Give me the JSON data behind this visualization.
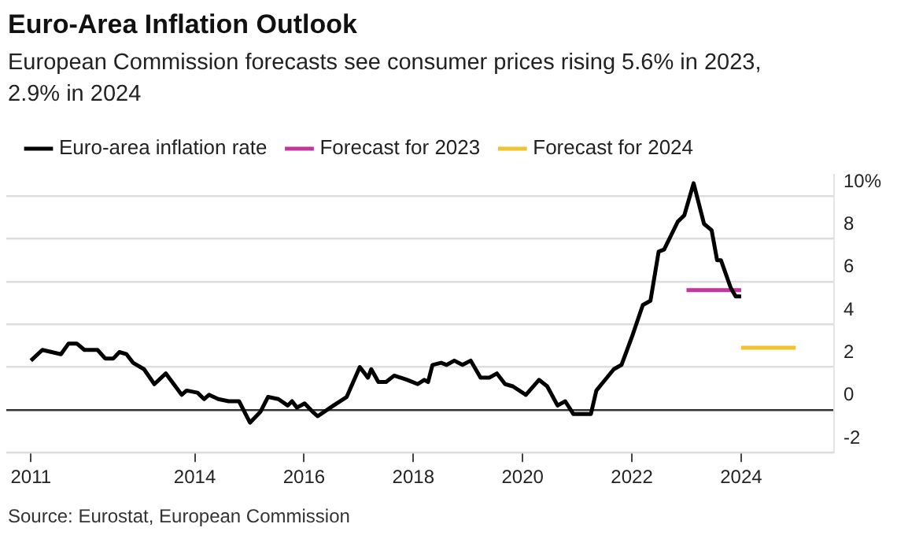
{
  "chart_data": {
    "type": "line",
    "title": "Euro-Area Inflation Outlook",
    "subtitle": "European Commission forecasts see consumer prices rising 5.6% in 2023, 2.9% in 2024",
    "series": [
      {
        "name": "Euro-area inflation rate",
        "color": "#000000",
        "x": [
          2011.0,
          2011.21,
          2011.55,
          2011.69,
          2011.84,
          2011.98,
          2012.22,
          2012.36,
          2012.51,
          2012.62,
          2012.75,
          2012.87,
          2013.07,
          2013.26,
          2013.47,
          2013.76,
          2013.85,
          2014.05,
          2014.17,
          2014.26,
          2014.43,
          2014.62,
          2014.81,
          2015.01,
          2015.2,
          2015.34,
          2015.53,
          2015.7,
          2015.78,
          2015.87,
          2016.01,
          2016.16,
          2016.25,
          2016.54,
          2016.78,
          2017.02,
          2017.17,
          2017.23,
          2017.36,
          2017.5,
          2017.65,
          2017.89,
          2018.08,
          2018.2,
          2018.27,
          2018.35,
          2018.51,
          2018.61,
          2018.75,
          2018.9,
          2019.05,
          2019.23,
          2019.39,
          2019.53,
          2019.68,
          2019.82,
          2020.06,
          2020.3,
          2020.45,
          2020.64,
          2020.78,
          2020.93,
          2021.25,
          2021.35,
          2021.67,
          2021.81,
          2022.0,
          2022.2,
          2022.34,
          2022.49,
          2022.59,
          2022.84,
          2022.96,
          2023.13,
          2023.32,
          2023.46,
          2023.56,
          2023.63,
          2023.81,
          2023.9,
          2024.0
        ],
        "values": [
          2.3,
          2.8,
          2.6,
          3.1,
          3.1,
          2.8,
          2.8,
          2.4,
          2.4,
          2.7,
          2.6,
          2.2,
          1.9,
          1.2,
          1.7,
          0.7,
          0.9,
          0.8,
          0.5,
          0.7,
          0.5,
          0.4,
          0.4,
          -0.6,
          -0.1,
          0.6,
          0.5,
          0.2,
          0.4,
          0.1,
          0.3,
          -0.1,
          -0.3,
          0.2,
          0.6,
          2.0,
          1.5,
          1.9,
          1.3,
          1.3,
          1.6,
          1.4,
          1.2,
          1.4,
          1.3,
          2.1,
          2.2,
          2.1,
          2.3,
          2.1,
          2.3,
          1.5,
          1.5,
          1.7,
          1.2,
          1.1,
          0.7,
          1.4,
          1.1,
          0.2,
          0.4,
          -0.2,
          -0.2,
          0.9,
          1.9,
          2.1,
          3.4,
          4.9,
          5.1,
          7.4,
          7.5,
          8.8,
          9.1,
          10.6,
          8.7,
          8.4,
          7.0,
          7.0,
          5.7,
          5.3,
          5.3
        ]
      },
      {
        "name": "Forecast for 2023",
        "color": "#c1379b",
        "x": [
          2023.0,
          2024.0
        ],
        "values": [
          5.6,
          5.6
        ]
      },
      {
        "name": "Forecast for 2024",
        "color": "#f2c230",
        "x": [
          2024.0,
          2025.0
        ],
        "values": [
          2.9,
          2.9
        ]
      }
    ],
    "xlim": [
      2010.55,
      2025.7
    ],
    "xticks": [
      2011,
      2014,
      2016,
      2018,
      2020,
      2022,
      2024
    ],
    "ylim": [
      -2,
      11
    ],
    "yticks": [
      -2,
      0,
      2,
      4,
      6,
      8,
      {
        "value": 10,
        "label": "10%"
      }
    ],
    "grid": "y",
    "legend": "top left",
    "marker": "none",
    "annotations": [
      "Source: Eurostat, European Commission"
    ]
  }
}
